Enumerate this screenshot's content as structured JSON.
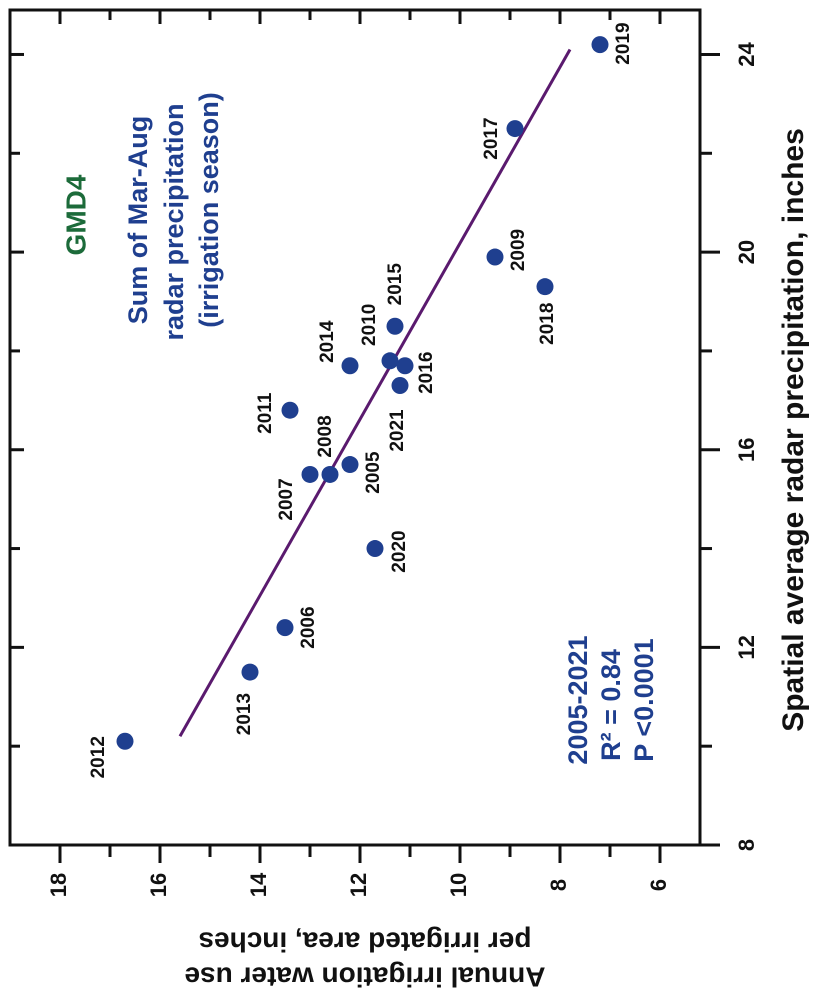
{
  "chart_data": {
    "type": "scatter",
    "x_label": "Spatial average radar precipitation, inches",
    "y_label": [
      "Annual irrigation water use",
      "per irrigated area, inches"
    ],
    "annotations": [
      "GMD4",
      "Sum of Mar-Aug",
      "radar precipitation",
      "(irrigation season)"
    ],
    "stats": [
      "2005-2021",
      "R² = 0.84",
      "P <0.0001"
    ],
    "xlim": [
      8,
      24.9
    ],
    "ylim": [
      19,
      5.2
    ],
    "xticks": [
      8,
      12,
      16,
      20,
      24
    ],
    "xminor": [
      10,
      14,
      18,
      22
    ],
    "yticks": [
      18,
      16,
      14,
      12,
      10,
      8,
      6
    ],
    "yminor": [
      17,
      15,
      13,
      11,
      9,
      7
    ],
    "labels": [
      "2012",
      "2013",
      "2006",
      "2020",
      "2007",
      "2008",
      "2005",
      "2011",
      "2021",
      "2016",
      "2014",
      "2010",
      "2015",
      "2018",
      "2009",
      "2017",
      "2019"
    ],
    "x": [
      10.1,
      11.5,
      12.4,
      14.0,
      15.5,
      15.5,
      15.7,
      16.8,
      17.3,
      17.7,
      17.7,
      17.8,
      18.5,
      19.3,
      19.9,
      22.5,
      24.2
    ],
    "y": [
      16.7,
      14.2,
      13.5,
      11.7,
      13.0,
      12.6,
      12.2,
      13.4,
      11.2,
      11.1,
      12.2,
      11.4,
      11.3,
      8.3,
      9.3,
      8.9,
      7.2
    ],
    "color": "#1f3f8f",
    "trendline": {
      "x": [
        10.2,
        24.1
      ],
      "y": [
        15.6,
        7.8
      ],
      "color": "#5a1a6e"
    }
  }
}
